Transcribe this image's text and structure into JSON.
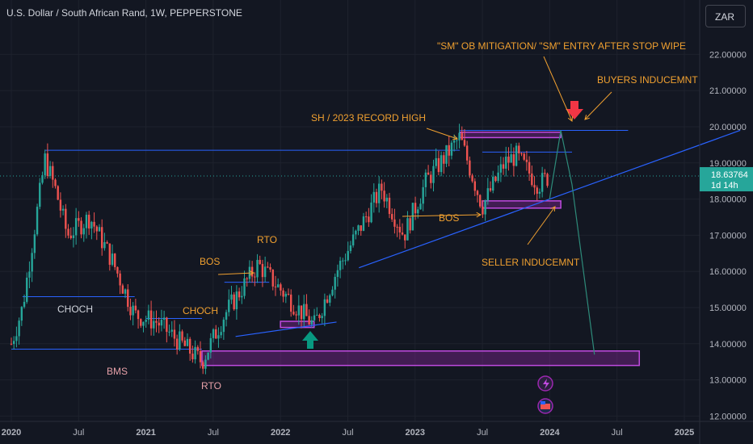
{
  "header": {
    "title": "U.S. Dollar / South African Rand, 1W, PEPPERSTONE",
    "currency": "ZAR"
  },
  "price_tag": {
    "value": "18.63764",
    "countdown": "1d 14h"
  },
  "colors": {
    "background": "#131722",
    "bull": "#26a69a",
    "bear": "#ef5350",
    "level_line": "#2962ff",
    "zone": "#9c27b0",
    "annotation": "#f0a030",
    "label_light": "#d1d4dc",
    "label_pink": "#e6a0a8",
    "arrow_up": "#089981",
    "arrow_down": "#f23645",
    "projection": "#2e8b7a"
  },
  "annotations": {
    "sm_entry": "\"SM\" OB MITIGATION/ \"SM\" ENTRY AFTER STOP WIPE",
    "buyers_inducement": "BUYERS INDUCEMNT",
    "sh_record": "SH / 2023 RECORD HIGH",
    "bos_2023": "BOS",
    "seller_inducement": "SELLER INDUCEMNT",
    "rto_2021": "RTO",
    "bos_2021": "BOS",
    "choch_2020": "CHOCH",
    "choch_2021": "CHOCH",
    "bms": "BMS",
    "rto_2021_low": "RTO"
  },
  "chart_data": {
    "type": "candlestick",
    "symbol": "USDZAR",
    "timeframe": "1W",
    "ylim": [
      11.9,
      22.8
    ],
    "y_ticks": [
      "22.00000",
      "21.00000",
      "20.00000",
      "19.00000",
      "18.00000",
      "17.00000",
      "16.00000",
      "15.00000",
      "14.00000",
      "13.00000",
      "12.00000"
    ],
    "x_ticks": [
      "2020",
      "Jul",
      "2021",
      "Jul",
      "2022",
      "Jul",
      "2023",
      "Jul",
      "2024",
      "Jul",
      "2025"
    ],
    "last_price": 18.63764,
    "anchors": [
      {
        "date": "2020-01",
        "price": 14.0
      },
      {
        "date": "2020-02",
        "price": 15.0
      },
      {
        "date": "2020-04",
        "price": 19.1
      },
      {
        "date": "2020-05",
        "price": 18.2
      },
      {
        "date": "2020-06",
        "price": 17.0
      },
      {
        "date": "2020-08",
        "price": 17.5
      },
      {
        "date": "2020-10",
        "price": 16.3
      },
      {
        "date": "2020-12",
        "price": 14.8
      },
      {
        "date": "2021-02",
        "price": 14.6
      },
      {
        "date": "2021-06",
        "price": 13.5
      },
      {
        "date": "2021-08",
        "price": 14.8
      },
      {
        "date": "2021-11",
        "price": 16.2
      },
      {
        "date": "2022-01",
        "price": 15.5
      },
      {
        "date": "2022-04",
        "price": 14.5
      },
      {
        "date": "2022-06",
        "price": 16.0
      },
      {
        "date": "2022-10",
        "price": 18.3
      },
      {
        "date": "2022-12",
        "price": 17.0
      },
      {
        "date": "2023-02",
        "price": 18.5
      },
      {
        "date": "2023-05",
        "price": 19.7
      },
      {
        "date": "2023-07",
        "price": 17.8
      },
      {
        "date": "2023-09",
        "price": 19.0
      },
      {
        "date": "2023-10",
        "price": 19.2
      },
      {
        "date": "2023-12",
        "price": 18.4
      },
      {
        "date": "2024-01",
        "price": 18.64
      }
    ],
    "levels": [
      {
        "from": "2020-04",
        "to": "2023-05",
        "price": 19.35
      },
      {
        "from": "2020-01",
        "to": "2021-06",
        "price": 13.85
      },
      {
        "from": "2020-02",
        "to": "2020-12",
        "price": 15.3
      },
      {
        "from": "2021-08",
        "to": "2021-12",
        "price": 15.7
      },
      {
        "from": "2021-01",
        "to": "2021-06",
        "price": 14.7
      },
      {
        "from": "2023-07",
        "to": "2024-03",
        "price": 19.3
      },
      {
        "from": "2023-05",
        "to": "2024-08",
        "price": 19.9
      }
    ],
    "zones": [
      {
        "from": "2023-05",
        "to": "2024-02",
        "low": 19.7,
        "high": 19.85
      },
      {
        "from": "2023-07",
        "to": "2024-02",
        "low": 17.75,
        "high": 17.95
      },
      {
        "from": "2022-01",
        "to": "2022-04",
        "low": 14.45,
        "high": 14.62
      },
      {
        "from": "2021-06",
        "to": "2024-09",
        "low": 13.4,
        "high": 13.8
      }
    ],
    "trendlines": [
      {
        "from_date": "2022-08",
        "from_price": 16.1,
        "to_date": "2025-06",
        "to_price": 19.9
      },
      {
        "from_date": "2021-09",
        "from_price": 14.2,
        "to_date": "2022-06",
        "to_price": 14.6
      }
    ],
    "projection": [
      {
        "date": "2024-01",
        "price": 18.0
      },
      {
        "date": "2024-02",
        "price": 19.9
      },
      {
        "date": "2024-03",
        "price": 18.4
      },
      {
        "date": "2024-05",
        "price": 13.7
      }
    ]
  }
}
